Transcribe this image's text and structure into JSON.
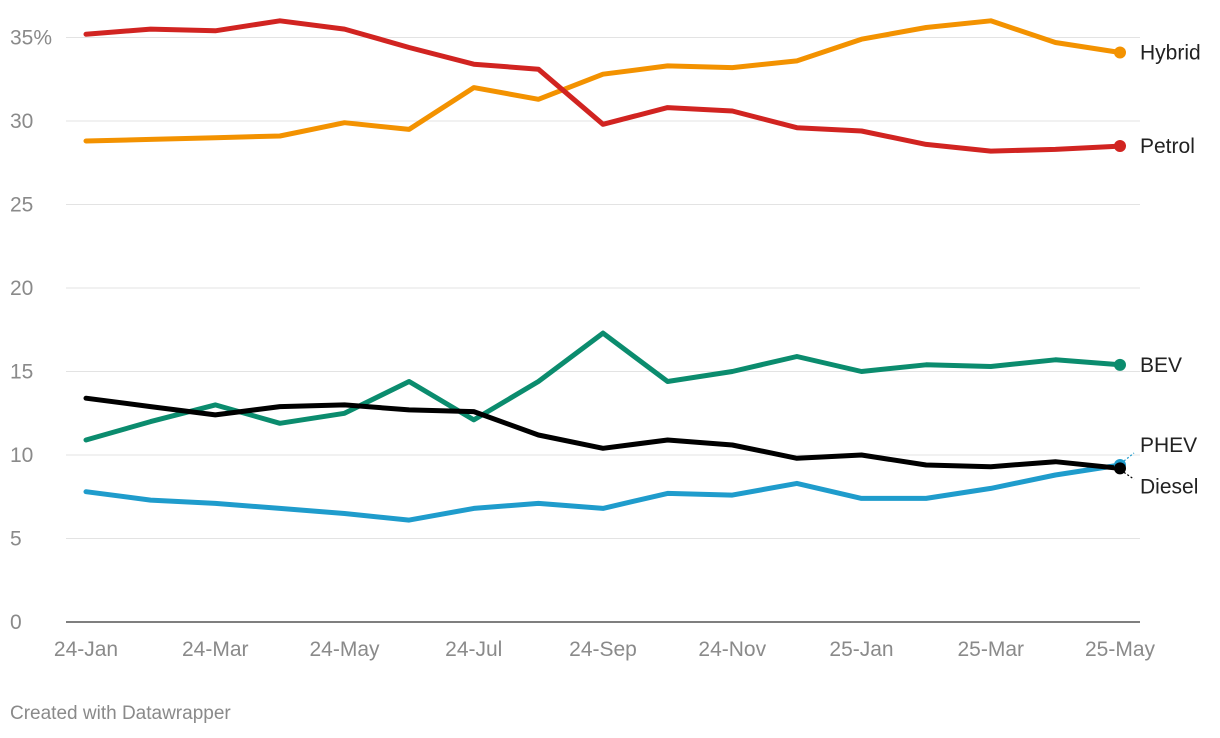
{
  "chart_data": {
    "type": "line",
    "title": "",
    "xlabel": "",
    "ylabel": "",
    "y_unit_suffix": "%",
    "ylim": [
      0,
      36
    ],
    "y_ticks": [
      0,
      5,
      10,
      15,
      20,
      25,
      30,
      35
    ],
    "y_tick_labels": [
      "0",
      "5",
      "10",
      "15",
      "20",
      "25",
      "30",
      "35%"
    ],
    "x": [
      "24-Jan",
      "24-Feb",
      "24-Mar",
      "24-Apr",
      "24-May",
      "24-Jun",
      "24-Jul",
      "24-Aug",
      "24-Sep",
      "24-Oct",
      "24-Nov",
      "24-Dec",
      "25-Jan",
      "25-Feb",
      "25-Mar",
      "25-Apr",
      "25-May"
    ],
    "x_tick_labels": [
      "24-Jan",
      "24-Mar",
      "24-May",
      "24-Jul",
      "24-Sep",
      "24-Nov",
      "25-Jan",
      "25-Mar",
      "25-May"
    ],
    "series": [
      {
        "name": "Hybrid",
        "color": "#f39200",
        "values": [
          28.8,
          28.9,
          29.0,
          29.1,
          29.9,
          29.5,
          32.0,
          31.3,
          32.8,
          33.3,
          33.2,
          33.6,
          34.9,
          35.6,
          36.0,
          34.7,
          34.1
        ]
      },
      {
        "name": "Petrol",
        "color": "#d12421",
        "values": [
          35.2,
          35.5,
          35.4,
          36.0,
          35.5,
          34.4,
          33.4,
          33.1,
          29.8,
          30.8,
          30.6,
          29.6,
          29.4,
          28.6,
          28.2,
          28.3,
          28.5
        ]
      },
      {
        "name": "BEV",
        "color": "#0b8c6e",
        "values": [
          10.9,
          12.0,
          13.0,
          11.9,
          12.5,
          14.4,
          12.1,
          14.4,
          17.3,
          14.4,
          15.0,
          15.9,
          15.0,
          15.4,
          15.3,
          15.7,
          15.4
        ]
      },
      {
        "name": "PHEV",
        "color": "#1f9ccc",
        "values": [
          7.8,
          7.3,
          7.1,
          6.8,
          6.5,
          6.1,
          6.8,
          7.1,
          6.8,
          7.7,
          7.6,
          8.3,
          7.4,
          7.4,
          8.0,
          8.8,
          9.4
        ]
      },
      {
        "name": "Diesel",
        "color": "#000000",
        "values": [
          13.4,
          12.9,
          12.4,
          12.9,
          13.0,
          12.7,
          12.6,
          11.2,
          10.4,
          10.9,
          10.6,
          9.8,
          10.0,
          9.4,
          9.3,
          9.6,
          9.2
        ]
      }
    ]
  },
  "credit": "Created with Datawrapper"
}
